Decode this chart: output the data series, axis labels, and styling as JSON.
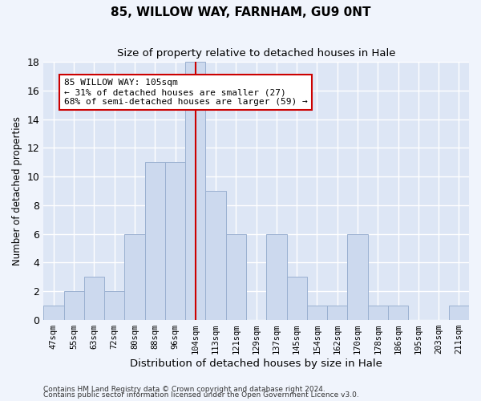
{
  "title": "85, WILLOW WAY, FARNHAM, GU9 0NT",
  "subtitle": "Size of property relative to detached houses in Hale",
  "xlabel": "Distribution of detached houses by size in Hale",
  "ylabel": "Number of detached properties",
  "categories": [
    "47sqm",
    "55sqm",
    "63sqm",
    "72sqm",
    "80sqm",
    "88sqm",
    "96sqm",
    "104sqm",
    "113sqm",
    "121sqm",
    "129sqm",
    "137sqm",
    "145sqm",
    "154sqm",
    "162sqm",
    "170sqm",
    "178sqm",
    "186sqm",
    "195sqm",
    "203sqm",
    "211sqm"
  ],
  "values": [
    1,
    2,
    3,
    2,
    6,
    11,
    11,
    18,
    9,
    6,
    0,
    6,
    3,
    1,
    1,
    6,
    1,
    1,
    0,
    0,
    1
  ],
  "bar_color": "#ccd9ee",
  "bar_edge_color": "#9ab0d0",
  "vline_x_index": 7,
  "vline_color": "#cc0000",
  "annotation_text": "85 WILLOW WAY: 105sqm\n← 31% of detached houses are smaller (27)\n68% of semi-detached houses are larger (59) →",
  "annotation_box_color": "#ffffff",
  "annotation_box_edge": "#cc0000",
  "ylim": [
    0,
    18
  ],
  "yticks": [
    0,
    2,
    4,
    6,
    8,
    10,
    12,
    14,
    16,
    18
  ],
  "background_color": "#dde6f5",
  "grid_color": "#ffffff",
  "footer1": "Contains HM Land Registry data © Crown copyright and database right 2024.",
  "footer2": "Contains public sector information licensed under the Open Government Licence v3.0.",
  "fig_bg": "#f0f4fc"
}
